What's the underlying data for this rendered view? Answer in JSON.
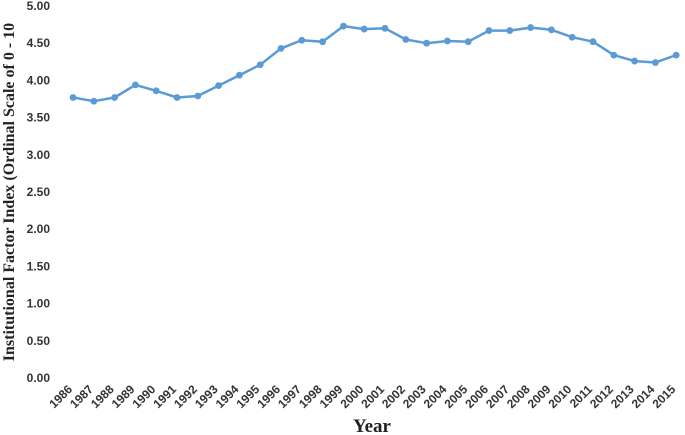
{
  "chart_data": {
    "type": "line",
    "title": "",
    "xlabel": "Year",
    "ylabel": "Institutional Factor Index (Ordinal Scale of 0 - 10",
    "ylim": [
      0,
      5
    ],
    "ytick_step": 0.5,
    "ytick_labels": [
      "0.00",
      "0.50",
      "1.00",
      "1.50",
      "2.00",
      "2.50",
      "3.00",
      "3.50",
      "4.00",
      "4.50",
      "5.00"
    ],
    "grid": false,
    "legend": "none",
    "line_color": "#5b9bd5",
    "categories": [
      "1986",
      "1987",
      "1988",
      "1989",
      "1990",
      "1991",
      "1992",
      "1993",
      "1994",
      "1995",
      "1996",
      "1997",
      "1998",
      "1999",
      "2000",
      "2001",
      "2002",
      "2003",
      "2004",
      "2005",
      "2006",
      "2007",
      "2008",
      "2009",
      "2010",
      "2011",
      "2012",
      "2013",
      "2014",
      "2015"
    ],
    "series": [
      {
        "values": [
          3.77,
          3.72,
          3.77,
          3.94,
          3.86,
          3.77,
          3.79,
          3.93,
          4.07,
          4.21,
          4.43,
          4.54,
          4.52,
          4.73,
          4.69,
          4.7,
          4.55,
          4.5,
          4.53,
          4.52,
          4.67,
          4.67,
          4.71,
          4.68,
          4.58,
          4.52,
          4.34,
          4.26,
          4.24,
          4.34
        ]
      }
    ]
  }
}
